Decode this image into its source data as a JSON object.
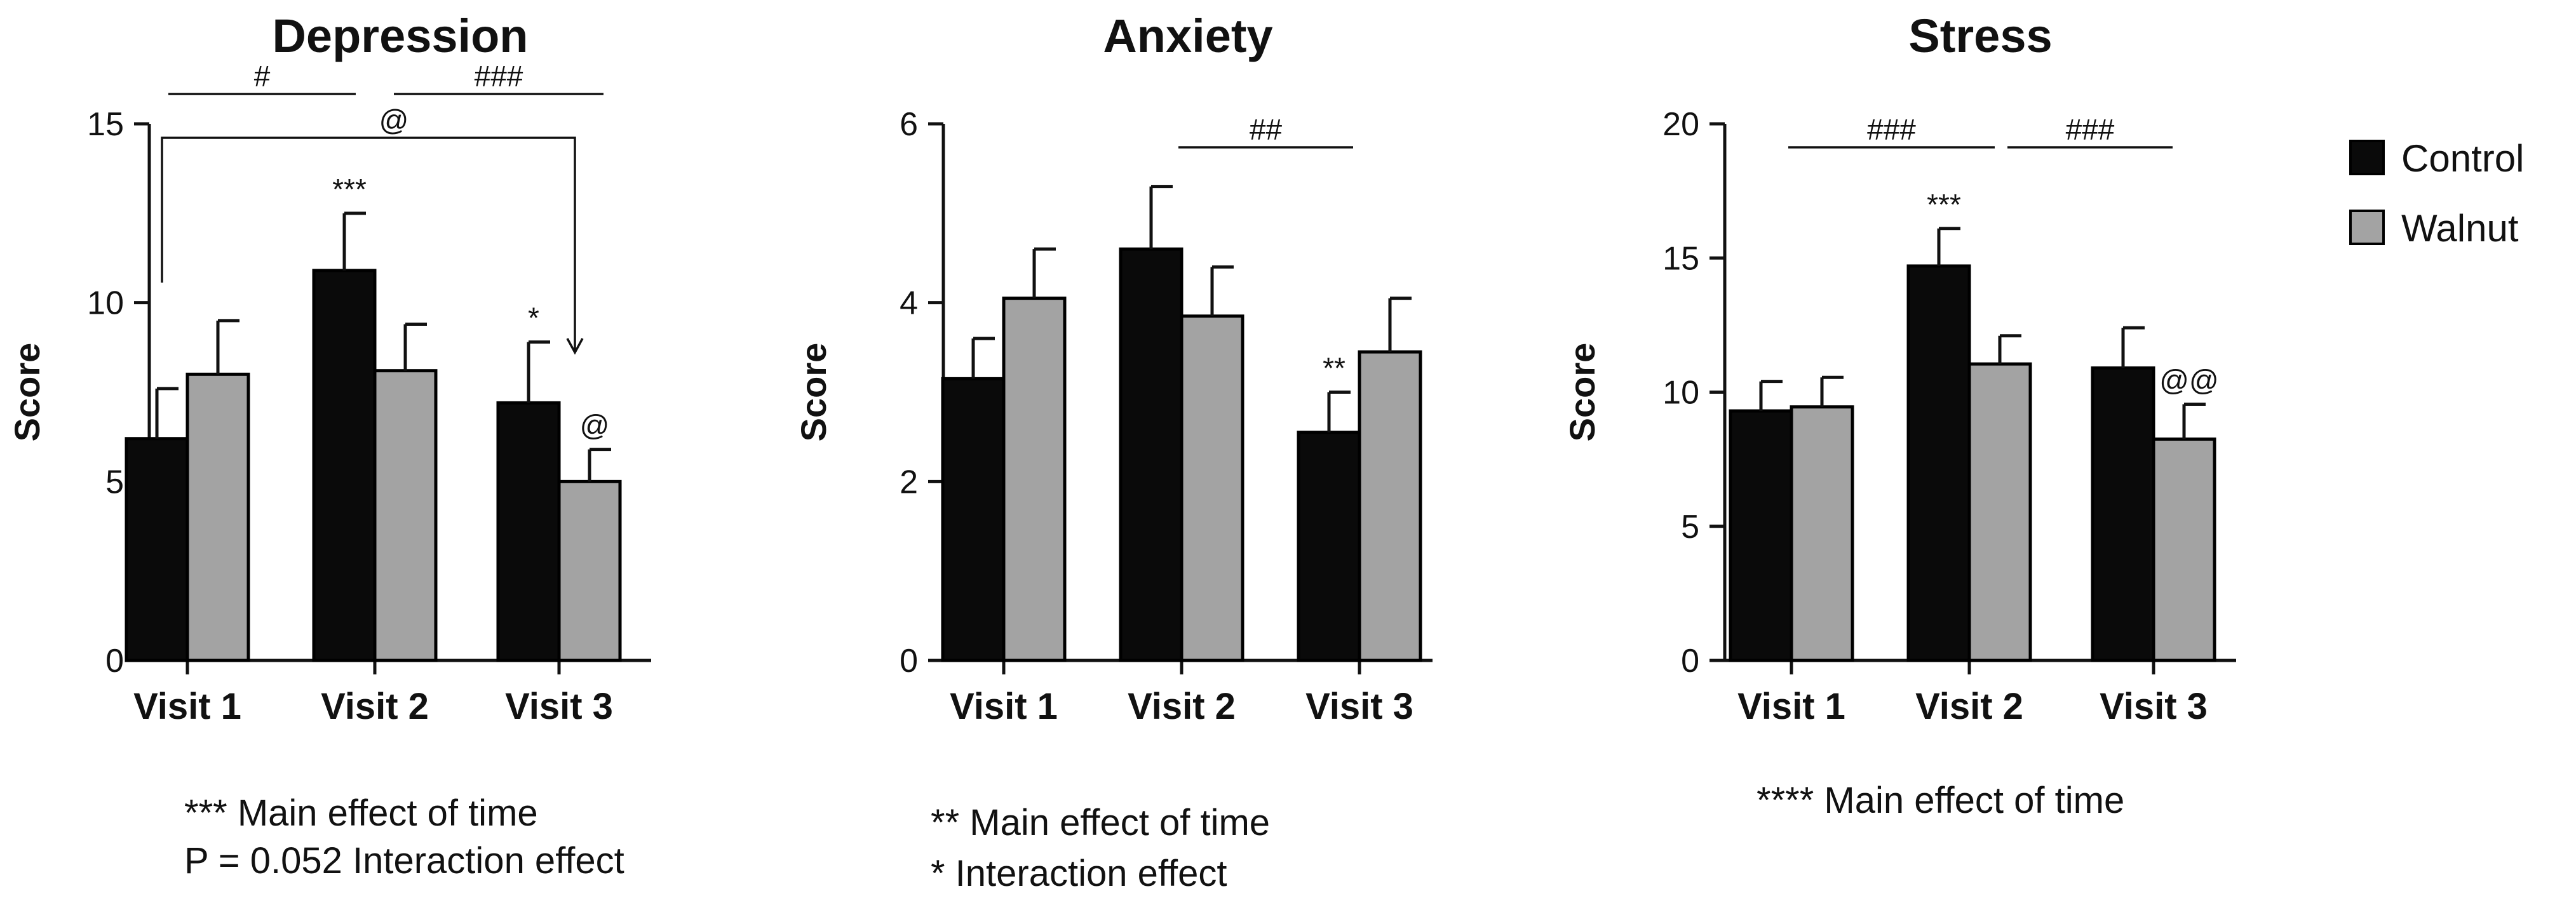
{
  "chart_data": [
    {
      "type": "bar",
      "title": "Depression",
      "ylabel": "Score",
      "xlabel": "",
      "ylim": [
        0,
        15
      ],
      "yticks": [
        0,
        5,
        10,
        15
      ],
      "categories": [
        "Visit 1",
        "Visit 2",
        "Visit 3"
      ],
      "series": [
        {
          "name": "Control",
          "values": [
            6.2,
            10.9,
            7.2
          ],
          "errors": [
            1.4,
            1.6,
            1.7
          ]
        },
        {
          "name": "Walnut",
          "values": [
            8.0,
            8.1,
            5.0
          ],
          "errors": [
            1.5,
            1.3,
            0.9
          ]
        }
      ],
      "bar_labels": [
        {
          "series": 0,
          "index": 1,
          "text": "***"
        },
        {
          "series": 0,
          "index": 2,
          "text": "*"
        },
        {
          "series": 1,
          "index": 2,
          "text": "@"
        }
      ],
      "brackets": [
        {
          "from": 0,
          "to": 1,
          "text": "#",
          "style": "line"
        },
        {
          "from": 1,
          "to": 2,
          "text": "###",
          "style": "line"
        },
        {
          "from": 0,
          "to": 2,
          "text": "@",
          "style": "bracket"
        }
      ],
      "footnotes": [
        "***  Main effect of time",
        "P = 0.052 Interaction effect"
      ]
    },
    {
      "type": "bar",
      "title": "Anxiety",
      "ylabel": "Score",
      "xlabel": "",
      "ylim": [
        0,
        6
      ],
      "yticks": [
        0,
        2,
        4,
        6
      ],
      "categories": [
        "Visit 1",
        "Visit 2",
        "Visit 3"
      ],
      "series": [
        {
          "name": "Control",
          "values": [
            3.15,
            4.6,
            2.55
          ],
          "errors": [
            0.45,
            0.7,
            0.45
          ]
        },
        {
          "name": "Walnut",
          "values": [
            4.05,
            3.85,
            3.45
          ],
          "errors": [
            0.55,
            0.55,
            0.6
          ]
        }
      ],
      "bar_labels": [
        {
          "series": 0,
          "index": 2,
          "text": "**"
        }
      ],
      "brackets": [
        {
          "from": 1,
          "to": 2,
          "text": "##",
          "style": "line"
        }
      ],
      "footnotes": [
        "**  Main effect of time",
        "*    Interaction effect"
      ]
    },
    {
      "type": "bar",
      "title": "Stress",
      "ylabel": "Score",
      "xlabel": "",
      "ylim": [
        0,
        20
      ],
      "yticks": [
        0,
        5,
        10,
        15,
        20
      ],
      "categories": [
        "Visit 1",
        "Visit 2",
        "Visit 3"
      ],
      "series": [
        {
          "name": "Control",
          "values": [
            9.3,
            14.7,
            10.9
          ],
          "errors": [
            1.1,
            1.4,
            1.5
          ]
        },
        {
          "name": "Walnut",
          "values": [
            9.45,
            11.05,
            8.25
          ],
          "errors": [
            1.1,
            1.05,
            1.3
          ]
        }
      ],
      "bar_labels": [
        {
          "series": 0,
          "index": 1,
          "text": "***"
        },
        {
          "series": 1,
          "index": 2,
          "text": "@@"
        }
      ],
      "brackets": [
        {
          "from": 0,
          "to": 1,
          "text": "###",
          "style": "line"
        },
        {
          "from": 1,
          "to": 2,
          "text": "###",
          "style": "line"
        }
      ],
      "footnotes": [
        "**** Main effect of time"
      ]
    }
  ],
  "legend": {
    "position": "top-right",
    "items": [
      {
        "label": "Control",
        "color": "#0a0a0a"
      },
      {
        "label": "Walnut",
        "color": "#a3a3a3"
      }
    ]
  }
}
